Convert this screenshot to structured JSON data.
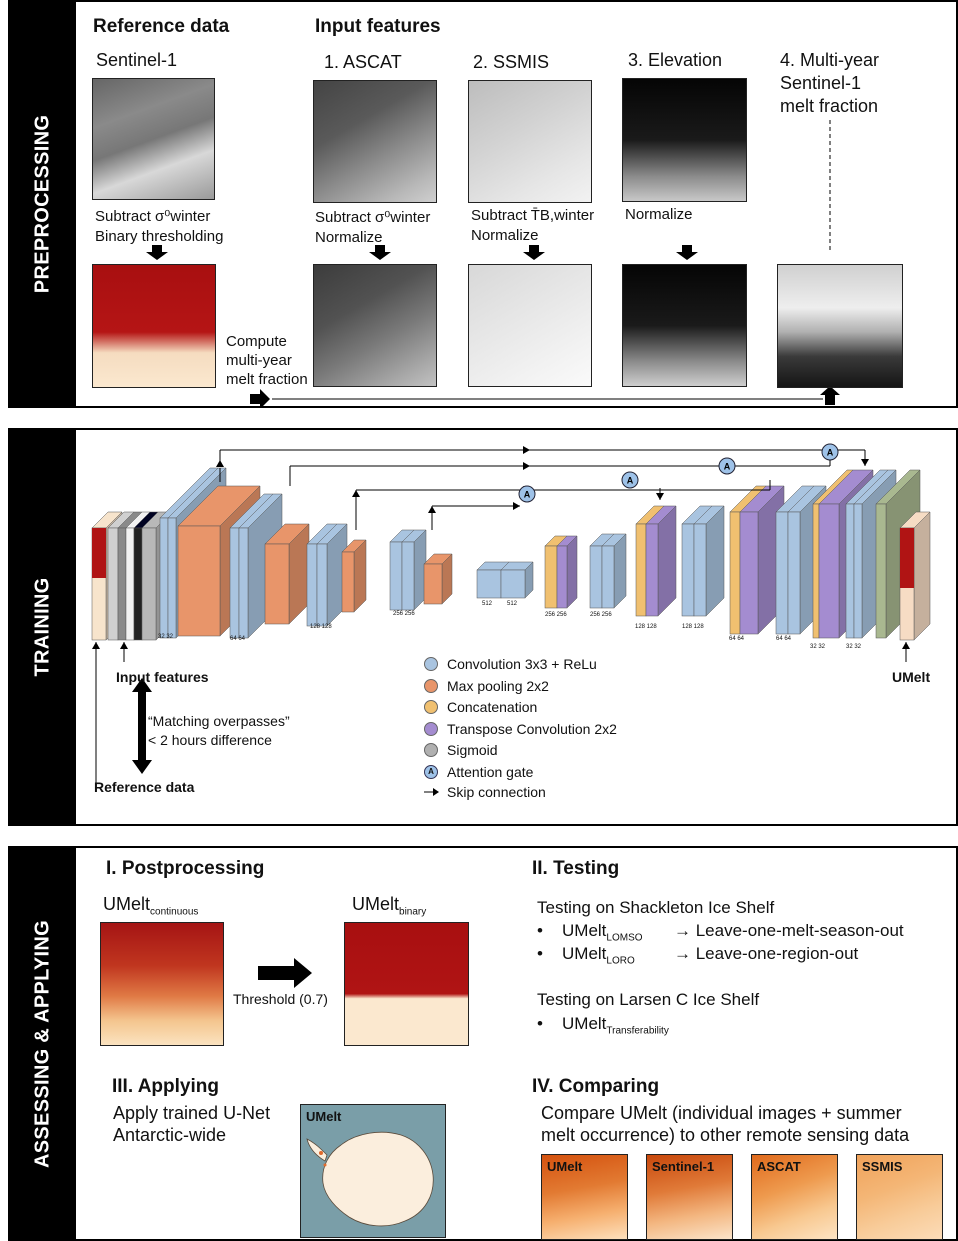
{
  "sections": {
    "preprocessing": "PREPROCESSING",
    "training": "TRAINING",
    "assessing": "ASSESSING & APPLYING"
  },
  "pre": {
    "reference_title": "Reference data",
    "input_title": "Input features",
    "sentinel": "Sentinel-1",
    "ascat": "1. ASCAT",
    "ssmis": "2. SSMIS",
    "elevation": "3. Elevation",
    "multiyear_1": "4. Multi-year",
    "multiyear_2": "Sentinel-1",
    "multiyear_3": "melt fraction",
    "ref_step1": "Subtract σ⁰winter",
    "ref_step2": "Binary thresholding",
    "ascat_step1": "Subtract σ⁰winter",
    "ascat_step2": "Normalize",
    "ssmis_step1": "Subtract T̄B,winter",
    "ssmis_step2": "Normalize",
    "elev_step": "Normalize",
    "compute_1": "Compute",
    "compute_2": "multi-year",
    "compute_3": "melt fraction"
  },
  "train": {
    "input_features": "Input features",
    "reference_data": "Reference data",
    "matching_1": "“Matching overpasses”",
    "matching_2": "< 2 hours difference",
    "umelt": "UMelt",
    "ch": [
      "32 32",
      "64 64",
      "128 128",
      "256 256",
      "512",
      "512",
      "256 256",
      "256 256",
      "128 128",
      "128 128",
      "64 64",
      "64 64",
      "32 32",
      "32 32"
    ],
    "gate": "A",
    "legend": [
      {
        "label": "Convolution 3x3 + ReLu",
        "color": "#a9c4e0"
      },
      {
        "label": "Max pooling 2x2",
        "color": "#e8956a"
      },
      {
        "label": "Concatenation",
        "color": "#f0c070"
      },
      {
        "label": "Transpose Convolution 2x2",
        "color": "#a48cd0"
      },
      {
        "label": "Sigmoid",
        "color": "#b0b0b0"
      },
      {
        "label": "Attention gate",
        "color": "#9ec2e8"
      },
      {
        "label": "Skip connection",
        "color": "#000000"
      }
    ]
  },
  "assess": {
    "post_title": "I. Postprocessing",
    "umelt_cont": "UMelt",
    "umelt_cont_sub": "continuous",
    "umelt_bin": "UMelt",
    "umelt_bin_sub": "binary",
    "threshold": "Threshold (0.7)",
    "testing_title": "II. Testing",
    "shackleton": "Testing on Shackleton Ice Shelf",
    "b1_main": "UMelt",
    "b1_sub": "LOMSO",
    "b1_arrow": "→ Leave-one-melt-season-out",
    "b2_main": "UMelt",
    "b2_sub": "LORO",
    "b2_arrow": "→ Leave-one-region-out",
    "larsen": "Testing on Larsen C Ice Shelf",
    "b3_main": "UMelt",
    "b3_sub": "Transferability",
    "applying_title": "III. Applying",
    "apply_1": "Apply trained U-Net",
    "apply_2": "Antarctic-wide",
    "map_label": "UMelt",
    "comparing_title": "IV. Comparing",
    "compare_1": "Compare UMelt (individual images + summer",
    "compare_2": "melt occurrence) to other remote sensing data",
    "thumbs": [
      "UMelt",
      "Sentinel-1",
      "ASCAT",
      "SSMIS"
    ]
  }
}
